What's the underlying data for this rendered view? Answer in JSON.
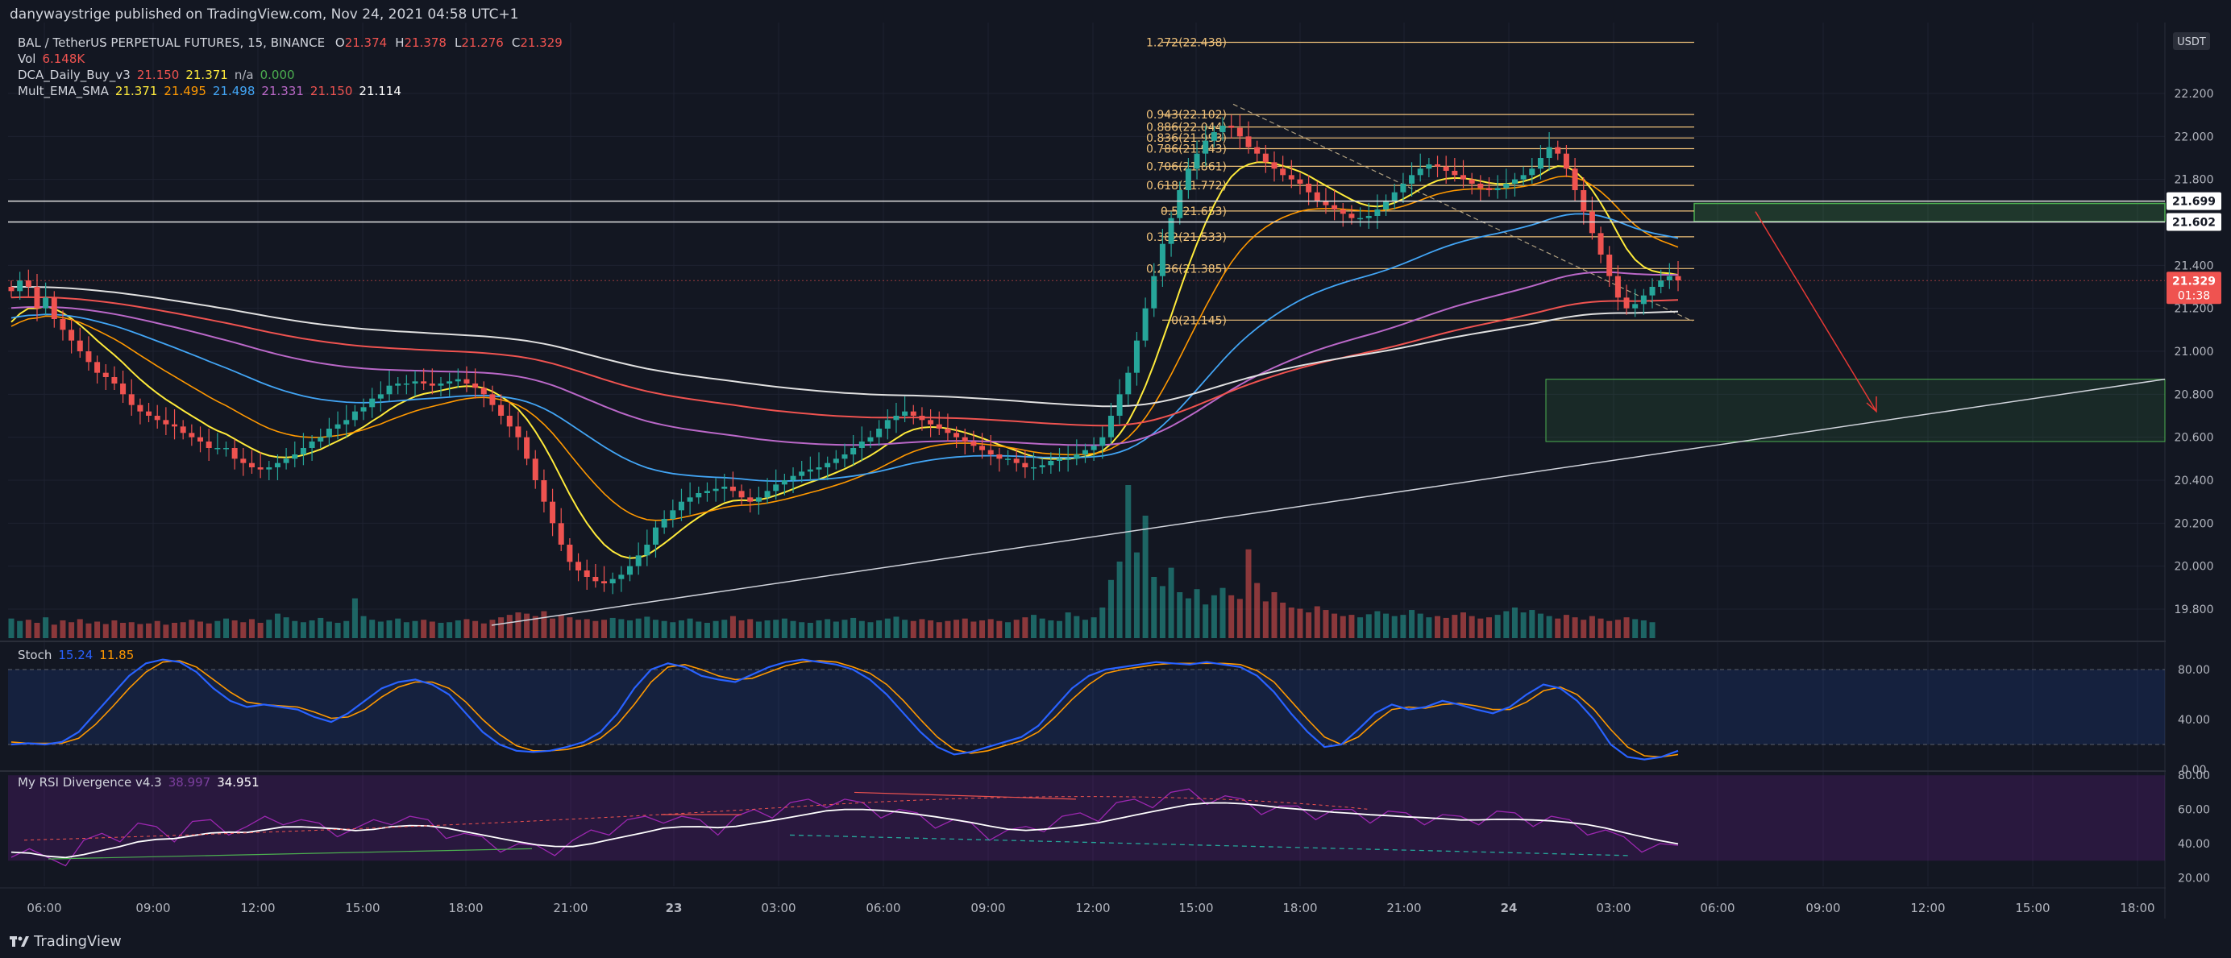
{
  "header": {
    "published": "danywaystrige published on TradingView.com, Nov 24, 2021 04:58 UTC+1"
  },
  "symbol": {
    "name": "BAL / TetherUS PERPETUAL FUTURES, 15, BINANCE",
    "o_label": "O",
    "open": "21.374",
    "h_label": "H",
    "high": "21.378",
    "l_label": "L",
    "low": "21.276",
    "c_label": "C",
    "close": "21.329"
  },
  "indicators": {
    "vol": {
      "label": "Vol",
      "value": "6.148K"
    },
    "dca": {
      "label": "DCA_Daily_Buy_v3",
      "v1": "21.150",
      "v2": "21.371",
      "v3": "n/a",
      "v4": "0.000"
    },
    "ema": {
      "label": "Mult_EMA_SMA",
      "v1": "21.371",
      "v2": "21.495",
      "v3": "21.498",
      "v4": "21.331",
      "v5": "21.150",
      "v6": "21.114"
    },
    "stoch": {
      "label": "Stoch",
      "k": "15.24",
      "d": "11.85"
    },
    "rsi": {
      "label": "My RSI Divergence v4.3",
      "v1": "38.997",
      "v2": "34.951"
    }
  },
  "colors": {
    "background": "#131722",
    "up": "#26a69a",
    "down": "#ef5350",
    "fib": "#f0c27a",
    "accent_blue": "#2962ff",
    "stoch_k": "#2962ff",
    "stoch_d": "#ff9800",
    "rsi_band": "#7b1fa2",
    "zone_green": "#4caf50"
  },
  "chart_data": [
    {
      "type": "candlestick",
      "currency": "USDT",
      "x_ticks": [
        "06:00",
        "09:00",
        "12:00",
        "15:00",
        "18:00",
        "21:00",
        "23",
        "03:00",
        "06:00",
        "09:00",
        "12:00",
        "15:00",
        "18:00",
        "21:00",
        "24",
        "03:00",
        "06:00",
        "09:00",
        "12:00",
        "15:00",
        "18:00"
      ],
      "y_ticks": [
        "22.200",
        "22.000",
        "21.800",
        "21.600",
        "21.400",
        "21.200",
        "21.000",
        "20.800",
        "20.600",
        "20.400",
        "20.200",
        "20.000",
        "19.800"
      ],
      "ylim": [
        19.65,
        22.53
      ],
      "price_close": [
        21.28,
        21.33,
        21.3,
        21.2,
        21.25,
        21.15,
        21.1,
        21.05,
        21.0,
        20.95,
        20.9,
        20.88,
        20.85,
        20.8,
        20.75,
        20.72,
        20.7,
        20.68,
        20.66,
        20.65,
        20.62,
        20.6,
        20.58,
        20.55,
        20.55,
        20.55,
        20.5,
        20.48,
        20.46,
        20.45,
        20.46,
        20.48,
        20.5,
        20.52,
        20.55,
        20.58,
        20.6,
        20.64,
        20.66,
        20.68,
        20.72,
        20.74,
        20.78,
        20.8,
        20.84,
        20.85,
        20.85,
        20.86,
        20.85,
        20.84,
        20.85,
        20.86,
        20.87,
        20.85,
        20.83,
        20.8,
        20.75,
        20.7,
        20.65,
        20.6,
        20.5,
        20.4,
        20.3,
        20.2,
        20.1,
        20.02,
        19.98,
        19.95,
        19.93,
        19.92,
        19.94,
        19.96,
        20.0,
        20.05,
        20.1,
        20.18,
        20.22,
        20.26,
        20.3,
        20.32,
        20.34,
        20.35,
        20.36,
        20.37,
        20.35,
        20.32,
        20.3,
        20.32,
        20.35,
        20.38,
        20.4,
        20.42,
        20.44,
        20.45,
        20.46,
        20.48,
        20.5,
        20.52,
        20.55,
        20.58,
        20.6,
        20.64,
        20.68,
        20.7,
        20.72,
        20.7,
        20.68,
        20.66,
        20.64,
        20.62,
        20.6,
        20.58,
        20.56,
        20.54,
        20.52,
        20.5,
        20.5,
        20.48,
        20.46,
        20.46,
        20.47,
        20.49,
        20.5,
        20.5,
        20.52,
        20.54,
        20.56,
        20.6,
        20.7,
        20.8,
        20.9,
        21.05,
        21.2,
        21.35,
        21.5,
        21.62,
        21.75,
        21.85,
        21.92,
        21.98,
        22.02,
        22.05,
        22.04,
        22.0,
        21.95,
        21.92,
        21.88,
        21.85,
        21.82,
        21.8,
        21.78,
        21.74,
        21.7,
        21.68,
        21.66,
        21.64,
        21.62,
        21.62,
        21.63,
        21.66,
        21.7,
        21.74,
        21.78,
        21.82,
        21.85,
        21.87,
        21.86,
        21.84,
        21.82,
        21.8,
        21.78,
        21.76,
        21.75,
        21.76,
        21.78,
        21.8,
        21.82,
        21.85,
        21.9,
        21.95,
        21.92,
        21.85,
        21.75,
        21.65,
        21.55,
        21.45,
        21.35,
        21.25,
        21.2,
        21.22,
        21.26,
        21.3,
        21.33,
        21.35,
        21.33
      ],
      "volume": [
        3.2,
        2.8,
        3.0,
        2.5,
        3.4,
        2.2,
        2.9,
        2.6,
        3.1,
        2.4,
        2.7,
        2.3,
        2.9,
        2.5,
        2.6,
        2.3,
        2.4,
        2.8,
        2.2,
        2.5,
        2.6,
        3.0,
        2.7,
        2.4,
        2.8,
        3.2,
        2.9,
        2.6,
        3.1,
        2.5,
        3.0,
        4.0,
        3.4,
        2.8,
        2.6,
        2.9,
        3.3,
        2.7,
        2.5,
        2.8,
        6.5,
        3.6,
        3.0,
        2.7,
        2.9,
        3.2,
        2.6,
        2.8,
        3.0,
        2.7,
        2.5,
        2.6,
        2.9,
        3.1,
        2.8,
        2.4,
        3.0,
        3.4,
        3.8,
        4.2,
        4.0,
        3.6,
        4.4,
        3.2,
        3.8,
        3.4,
        3.0,
        3.1,
        2.8,
        3.0,
        3.3,
        3.1,
        2.9,
        3.2,
        3.5,
        3.0,
        2.8,
        2.6,
        2.9,
        3.2,
        2.7,
        2.5,
        2.8,
        3.0,
        3.6,
        2.9,
        3.1,
        2.7,
        2.9,
        3.0,
        3.2,
        2.8,
        2.6,
        2.5,
        2.9,
        3.1,
        2.7,
        3.0,
        3.3,
        2.8,
        2.6,
        2.9,
        3.2,
        3.5,
        3.0,
        2.8,
        3.1,
        2.9,
        2.6,
        2.8,
        3.0,
        3.2,
        2.7,
        2.9,
        3.1,
        2.8,
        2.6,
        3.0,
        3.4,
        3.8,
        3.2,
        2.9,
        2.8,
        4.2,
        3.6,
        3.0,
        3.4,
        5.0,
        9.5,
        12.5,
        25.0,
        14.0,
        20.0,
        10.0,
        8.5,
        11.5,
        7.5,
        6.5,
        8.0,
        5.5,
        7.0,
        8.2,
        7.0,
        6.4,
        14.5,
        9.0,
        6.0,
        7.5,
        5.8,
        5.0,
        4.8,
        4.2,
        5.2,
        4.6,
        4.0,
        3.6,
        3.8,
        3.4,
        3.9,
        4.4,
        4.0,
        3.6,
        3.8,
        4.6,
        4.0,
        3.4,
        3.6,
        3.3,
        3.8,
        4.2,
        3.6,
        3.2,
        3.4,
        3.8,
        4.4,
        5.0,
        4.2,
        4.6,
        4.0,
        3.6,
        3.2,
        3.8,
        3.4,
        3.0,
        3.6,
        3.2,
        2.8,
        3.0,
        3.4,
        3.1,
        2.9,
        2.6
      ]
    },
    {
      "type": "horizontal_levels",
      "fib_levels": [
        {
          "ratio": "1.272",
          "price": 22.438
        },
        {
          "ratio": "0.943",
          "price": 22.102
        },
        {
          "ratio": "0.886",
          "price": 22.044
        },
        {
          "ratio": "0.836",
          "price": 21.993
        },
        {
          "ratio": "0.786",
          "price": 21.943
        },
        {
          "ratio": "0.706",
          "price": 21.861
        },
        {
          "ratio": "0.618",
          "price": 21.772
        },
        {
          "ratio": "0.5",
          "price": 21.653
        },
        {
          "ratio": "0.382",
          "price": 21.533
        },
        {
          "ratio": "0.236",
          "price": 21.385
        },
        {
          "ratio": "0",
          "price": 21.145
        }
      ],
      "price_labels": [
        {
          "text": "21.699",
          "price": 21.699,
          "style": "white"
        },
        {
          "text": "21.602",
          "price": 21.602,
          "style": "white"
        },
        {
          "text": "21.329",
          "price": 21.329,
          "style": "red"
        }
      ],
      "countdown": "01:38"
    },
    {
      "type": "line",
      "title": "Stoch",
      "y_ticks": [
        "80.00",
        "40.00",
        "0.00"
      ],
      "ylim": [
        0,
        100
      ],
      "band": [
        20,
        80
      ],
      "k": [
        20,
        21,
        20,
        22,
        30,
        45,
        60,
        75,
        85,
        88,
        86,
        78,
        65,
        55,
        50,
        52,
        50,
        48,
        42,
        38,
        45,
        55,
        65,
        70,
        72,
        68,
        60,
        45,
        30,
        20,
        15,
        14,
        15,
        18,
        22,
        30,
        45,
        65,
        80,
        85,
        82,
        75,
        72,
        70,
        76,
        82,
        86,
        88,
        86,
        84,
        80,
        72,
        60,
        45,
        30,
        18,
        12,
        14,
        18,
        22,
        26,
        35,
        50,
        65,
        75,
        80,
        82,
        84,
        86,
        85,
        84,
        86,
        84,
        82,
        75,
        62,
        45,
        30,
        18,
        20,
        32,
        45,
        52,
        48,
        50,
        55,
        52,
        48,
        45,
        50,
        60,
        68,
        65,
        55,
        40,
        20,
        10,
        8,
        10,
        15
      ],
      "d": [
        22,
        21,
        21,
        21,
        25,
        36,
        50,
        65,
        78,
        86,
        87,
        82,
        72,
        62,
        54,
        52,
        51,
        50,
        46,
        41,
        42,
        48,
        58,
        66,
        70,
        70,
        65,
        54,
        40,
        28,
        19,
        15,
        15,
        16,
        19,
        25,
        36,
        52,
        70,
        82,
        84,
        80,
        75,
        72,
        73,
        78,
        83,
        86,
        87,
        86,
        82,
        77,
        68,
        55,
        40,
        26,
        16,
        13,
        15,
        19,
        23,
        30,
        42,
        56,
        68,
        77,
        80,
        82,
        84,
        85,
        85,
        85,
        85,
        84,
        79,
        70,
        55,
        40,
        26,
        20,
        26,
        38,
        48,
        50,
        49,
        52,
        53,
        51,
        48,
        48,
        54,
        63,
        66,
        60,
        48,
        32,
        18,
        11,
        10,
        12
      ]
    },
    {
      "type": "line",
      "title": "My RSI Divergence v4.3",
      "y_ticks": [
        "80.00",
        "60.00",
        "40.00",
        "20.00"
      ],
      "ylim": [
        15,
        82
      ],
      "band": [
        30,
        80
      ],
      "rsi": [
        35,
        33,
        28,
        30,
        38,
        42,
        44,
        48,
        46,
        44,
        49,
        50,
        48,
        46,
        52,
        54,
        50,
        48,
        47,
        45,
        50,
        54,
        52,
        50,
        46,
        42,
        40,
        38,
        36,
        35,
        36,
        38,
        44,
        48,
        50,
        52,
        55,
        52,
        50,
        48,
        52,
        56,
        58,
        60,
        62,
        64,
        62,
        60,
        58,
        56,
        54,
        52,
        50,
        48,
        45,
        44,
        46,
        50,
        52,
        54,
        56,
        60,
        62,
        64,
        66,
        68,
        66,
        64,
        62,
        60,
        58,
        58,
        57,
        56,
        56,
        55,
        55,
        54,
        54,
        53,
        52,
        54,
        55,
        54,
        53,
        52,
        50,
        48,
        44,
        40,
        38,
        36,
        35
      ]
    }
  ]
}
